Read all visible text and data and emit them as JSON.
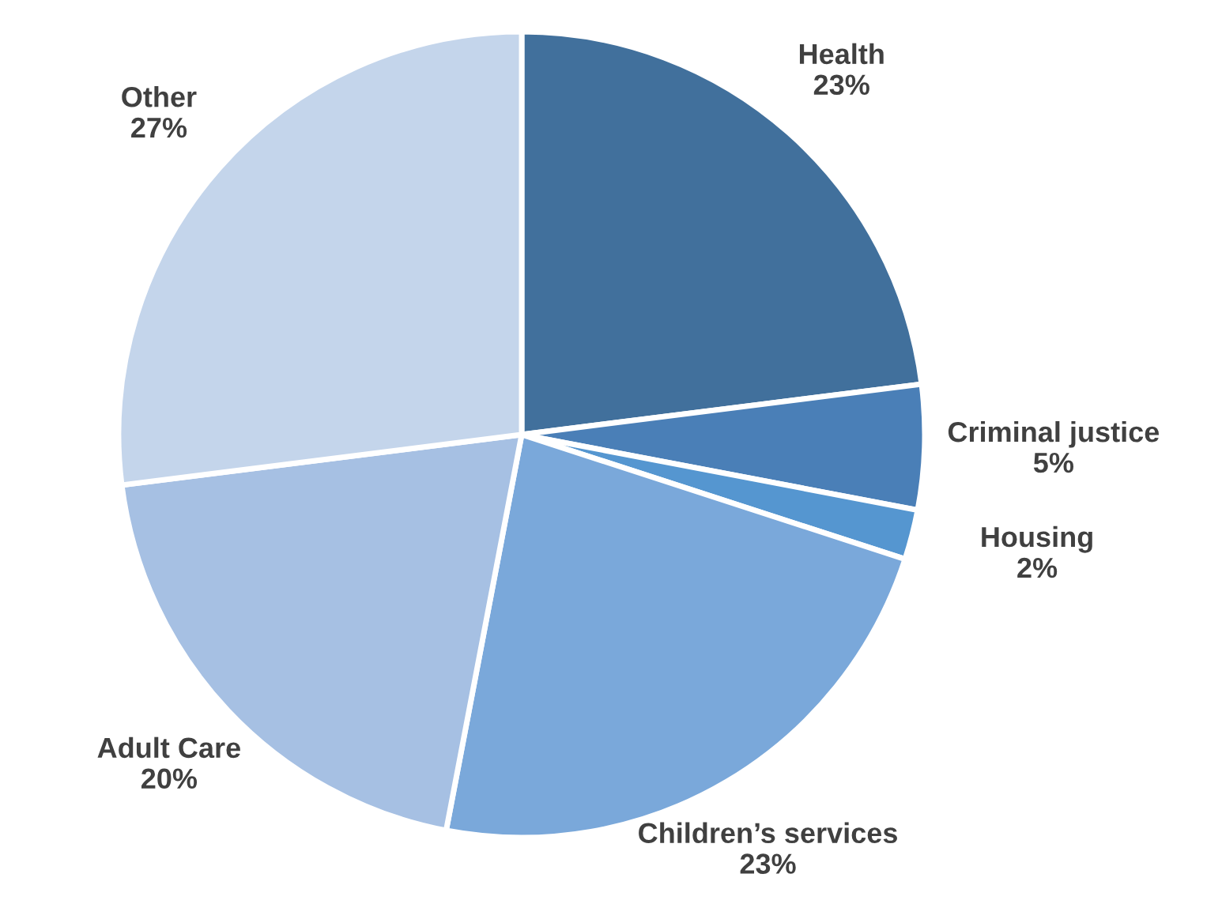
{
  "chart_data": {
    "type": "pie",
    "categories": [
      "Health",
      "Criminal justice",
      "Housing",
      "Children’s services",
      "Adult Care",
      "Other"
    ],
    "values": [
      23,
      5,
      2,
      23,
      20,
      27
    ],
    "value_labels": [
      "23%",
      "5%",
      "2%",
      "23%",
      "20%",
      "27%"
    ],
    "colors": [
      "#41709c",
      "#4a7fb7",
      "#5596d0",
      "#7aa8da",
      "#a6c0e3",
      "#c4d5eb"
    ]
  }
}
